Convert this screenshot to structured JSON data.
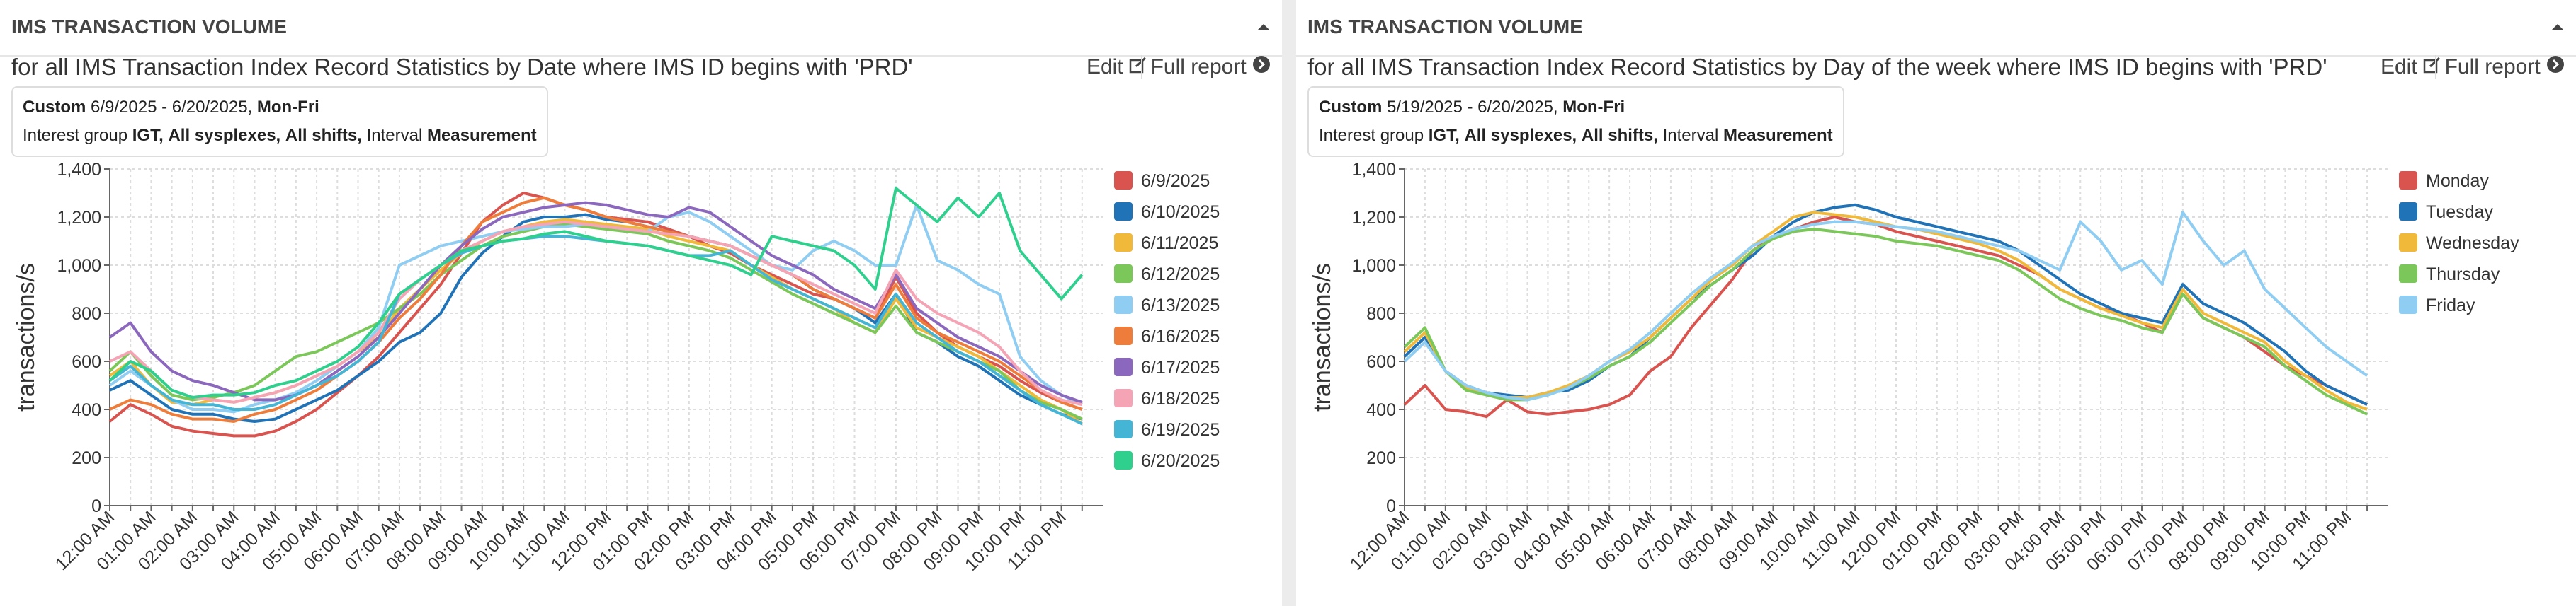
{
  "panels": [
    {
      "header": "IMS TRANSACTION VOLUME",
      "subtitle": "for all IMS Transaction Index Record Statistics by Date where IMS ID begins with 'PRD'",
      "edit": "Edit",
      "full_report": "Full report",
      "filter": {
        "label": "Custom",
        "range": "6/9/2025 - 6/20/2025,",
        "days": "Mon-Fri",
        "interest_label": "Interest group",
        "group": "IGT,",
        "sysplex": "All sysplexes,",
        "shifts": "All shifts,",
        "interval_label": "Interval",
        "interval": "Measurement"
      }
    },
    {
      "header": "IMS TRANSACTION VOLUME",
      "subtitle": "for all IMS Transaction Index Record Statistics by Day of the week where IMS ID begins with 'PRD'",
      "edit": "Edit",
      "full_report": "Full report",
      "filter": {
        "label": "Custom",
        "range": "5/19/2025 - 6/20/2025,",
        "days": "Mon-Fri",
        "interest_label": "Interest group",
        "group": "IGT,",
        "sysplex": "All sysplexes,",
        "shifts": "All shifts,",
        "interval_label": "Interval",
        "interval": "Measurement"
      }
    }
  ],
  "chart_data": [
    {
      "type": "line",
      "y_label": "transactions/s",
      "grid": true,
      "legend": "right",
      "ylim": [
        0,
        1400
      ],
      "yticks": [
        0,
        200,
        400,
        600,
        800,
        {
          "value": 1000,
          "label": "1,000"
        },
        {
          "value": 1200,
          "label": "1,200"
        },
        {
          "value": 1400,
          "label": "1,400"
        }
      ],
      "categories": [
        "12:00 AM",
        null,
        "01:00 AM",
        null,
        "02:00 AM",
        null,
        "03:00 AM",
        null,
        "04:00 AM",
        null,
        "05:00 AM",
        null,
        "06:00 AM",
        null,
        "07:00 AM",
        null,
        "08:00 AM",
        null,
        "09:00 AM",
        null,
        "10:00 AM",
        null,
        "11:00 AM",
        null,
        "12:00 PM",
        null,
        "01:00 PM",
        null,
        "02:00 PM",
        null,
        "03:00 PM",
        null,
        "04:00 PM",
        null,
        "05:00 PM",
        null,
        "06:00 PM",
        null,
        "07:00 PM",
        null,
        "08:00 PM",
        null,
        "09:00 PM",
        null,
        "10:00 PM",
        null,
        "11:00 PM",
        null
      ],
      "series": [
        {
          "name": "6/9/2025",
          "color": "#d9534f",
          "values": [
            350,
            420,
            380,
            330,
            310,
            300,
            290,
            290,
            310,
            350,
            400,
            470,
            540,
            620,
            720,
            820,
            920,
            1050,
            1180,
            1250,
            1300,
            1280,
            1250,
            1230,
            1200,
            1190,
            1180,
            1150,
            1120,
            1080,
            1050,
            1000,
            960,
            920,
            880,
            860,
            820,
            780,
            950,
            800,
            720,
            660,
            620,
            580,
            520,
            470,
            430,
            400
          ]
        },
        {
          "name": "6/10/2025",
          "color": "#2173b8",
          "values": [
            480,
            520,
            460,
            400,
            380,
            380,
            360,
            350,
            360,
            400,
            440,
            480,
            540,
            600,
            680,
            720,
            800,
            950,
            1050,
            1120,
            1180,
            1200,
            1200,
            1210,
            1190,
            1180,
            1160,
            1140,
            1120,
            1100,
            1080,
            1040,
            1000,
            960,
            900,
            860,
            820,
            760,
            880,
            720,
            680,
            620,
            580,
            520,
            460,
            420,
            380,
            360
          ]
        },
        {
          "name": "6/11/2025",
          "color": "#f0b93a",
          "values": [
            540,
            600,
            500,
            430,
            420,
            440,
            430,
            450,
            470,
            500,
            540,
            580,
            640,
            700,
            820,
            900,
            980,
            1050,
            1100,
            1140,
            1160,
            1180,
            1190,
            1180,
            1170,
            1160,
            1150,
            1120,
            1100,
            1080,
            1060,
            1000,
            950,
            900,
            860,
            820,
            760,
            720,
            860,
            740,
            700,
            660,
            620,
            560,
            500,
            440,
            400,
            340
          ]
        },
        {
          "name": "6/12/2025",
          "color": "#7cc75a",
          "values": [
            560,
            640,
            540,
            460,
            440,
            450,
            470,
            500,
            560,
            620,
            640,
            680,
            720,
            760,
            820,
            880,
            960,
            1020,
            1080,
            1120,
            1140,
            1160,
            1170,
            1160,
            1150,
            1140,
            1130,
            1100,
            1080,
            1060,
            1030,
            980,
            930,
            880,
            840,
            800,
            760,
            720,
            830,
            720,
            680,
            640,
            600,
            560,
            480,
            430,
            400,
            360
          ]
        },
        {
          "name": "6/13/2025",
          "color": "#8fcdf2",
          "values": [
            500,
            560,
            500,
            440,
            400,
            400,
            390,
            420,
            440,
            470,
            520,
            580,
            640,
            740,
            1000,
            1040,
            1080,
            1100,
            1120,
            1140,
            1150,
            1160,
            1160,
            1170,
            1160,
            1150,
            1140,
            1200,
            1220,
            1180,
            1120,
            1060,
            1000,
            980,
            1060,
            1100,
            1060,
            1000,
            1000,
            1250,
            1020,
            980,
            920,
            880,
            620,
            520,
            460,
            420
          ]
        },
        {
          "name": "6/16/2025",
          "color": "#ee7d3b",
          "values": [
            400,
            440,
            420,
            380,
            360,
            360,
            350,
            380,
            400,
            440,
            480,
            540,
            600,
            680,
            780,
            860,
            960,
            1080,
            1180,
            1220,
            1260,
            1280,
            1250,
            1230,
            1200,
            1180,
            1160,
            1140,
            1120,
            1100,
            1080,
            1040,
            1000,
            960,
            900,
            860,
            820,
            780,
            920,
            780,
            720,
            680,
            640,
            600,
            540,
            480,
            430,
            400
          ]
        },
        {
          "name": "6/17/2025",
          "color": "#8b68bd",
          "values": [
            700,
            760,
            640,
            560,
            520,
            500,
            470,
            440,
            440,
            460,
            500,
            560,
            620,
            700,
            800,
            900,
            1000,
            1080,
            1150,
            1200,
            1220,
            1240,
            1250,
            1260,
            1250,
            1230,
            1210,
            1200,
            1240,
            1220,
            1160,
            1100,
            1040,
            1000,
            960,
            900,
            860,
            820,
            960,
            820,
            760,
            700,
            660,
            620,
            560,
            500,
            460,
            430
          ]
        },
        {
          "name": "6/18/2025",
          "color": "#f5a4b5",
          "values": [
            600,
            640,
            560,
            480,
            450,
            440,
            430,
            450,
            470,
            500,
            540,
            580,
            640,
            720,
            860,
            940,
            1000,
            1060,
            1100,
            1140,
            1160,
            1170,
            1180,
            1170,
            1160,
            1150,
            1140,
            1130,
            1120,
            1100,
            1080,
            1040,
            1000,
            960,
            920,
            880,
            840,
            800,
            980,
            860,
            800,
            760,
            720,
            660,
            560,
            480,
            440,
            420
          ]
        },
        {
          "name": "6/19/2025",
          "color": "#45b5d6",
          "values": [
            520,
            580,
            500,
            440,
            420,
            420,
            400,
            400,
            420,
            460,
            500,
            540,
            600,
            680,
            880,
            940,
            1000,
            1050,
            1080,
            1100,
            1110,
            1120,
            1120,
            1110,
            1100,
            1090,
            1080,
            1060,
            1040,
            1040,
            1060,
            1000,
            940,
            900,
            860,
            820,
            780,
            740,
            880,
            760,
            700,
            640,
            600,
            540,
            480,
            420,
            380,
            340
          ]
        },
        {
          "name": "6/20/2025",
          "color": "#2fd08e",
          "values": [
            520,
            600,
            560,
            480,
            450,
            460,
            460,
            470,
            500,
            520,
            560,
            600,
            660,
            760,
            880,
            940,
            1000,
            1060,
            1080,
            1100,
            1110,
            1130,
            1140,
            1120,
            1100,
            1090,
            1080,
            1060,
            1040,
            1020,
            1000,
            960,
            1120,
            1100,
            1080,
            1060,
            1000,
            900,
            1320,
            1250,
            1180,
            1280,
            1200,
            1300,
            1060,
            960,
            860,
            960
          ]
        }
      ]
    },
    {
      "type": "line",
      "y_label": "transactions/s",
      "grid": true,
      "legend": "right",
      "ylim": [
        0,
        1400
      ],
      "yticks": [
        0,
        200,
        400,
        600,
        800,
        {
          "value": 1000,
          "label": "1,000"
        },
        {
          "value": 1200,
          "label": "1,200"
        },
        {
          "value": 1400,
          "label": "1,400"
        }
      ],
      "categories": [
        "12:00 AM",
        null,
        "01:00 AM",
        null,
        "02:00 AM",
        null,
        "03:00 AM",
        null,
        "04:00 AM",
        null,
        "05:00 AM",
        null,
        "06:00 AM",
        null,
        "07:00 AM",
        null,
        "08:00 AM",
        null,
        "09:00 AM",
        null,
        "10:00 AM",
        null,
        "11:00 AM",
        null,
        "12:00 PM",
        null,
        "01:00 PM",
        null,
        "02:00 PM",
        null,
        "03:00 PM",
        null,
        "04:00 PM",
        null,
        "05:00 PM",
        null,
        "06:00 PM",
        null,
        "07:00 PM",
        null,
        "08:00 PM",
        null,
        "09:00 PM",
        null,
        "10:00 PM",
        null,
        "11:00 PM",
        null
      ],
      "series": [
        {
          "name": "Monday",
          "color": "#d9534f",
          "values": [
            420,
            500,
            400,
            390,
            370,
            440,
            390,
            380,
            390,
            400,
            420,
            460,
            560,
            620,
            740,
            840,
            940,
            1060,
            1120,
            1150,
            1180,
            1200,
            1180,
            1170,
            1140,
            1120,
            1100,
            1080,
            1060,
            1040,
            1000,
            960,
            900,
            860,
            820,
            800,
            760,
            720,
            880,
            780,
            740,
            700,
            640,
            580,
            540,
            500,
            460,
            420
          ]
        },
        {
          "name": "Tuesday",
          "color": "#2173b8",
          "values": [
            620,
            700,
            560,
            500,
            470,
            460,
            450,
            470,
            480,
            520,
            580,
            620,
            700,
            780,
            860,
            920,
            980,
            1040,
            1120,
            1180,
            1220,
            1240,
            1250,
            1230,
            1200,
            1180,
            1160,
            1140,
            1120,
            1100,
            1060,
            1000,
            940,
            880,
            840,
            800,
            780,
            760,
            920,
            840,
            800,
            760,
            700,
            640,
            560,
            500,
            460,
            420
          ]
        },
        {
          "name": "Wednesday",
          "color": "#f0b93a",
          "values": [
            640,
            720,
            560,
            490,
            470,
            450,
            450,
            470,
            500,
            540,
            600,
            640,
            700,
            780,
            860,
            940,
            1000,
            1080,
            1140,
            1200,
            1220,
            1210,
            1200,
            1180,
            1160,
            1150,
            1130,
            1110,
            1090,
            1060,
            1020,
            960,
            900,
            860,
            820,
            790,
            760,
            740,
            900,
            800,
            760,
            720,
            680,
            600,
            540,
            480,
            430,
            400
          ]
        },
        {
          "name": "Thursday",
          "color": "#7cc75a",
          "values": [
            660,
            740,
            560,
            480,
            460,
            440,
            440,
            460,
            490,
            530,
            580,
            620,
            680,
            760,
            840,
            920,
            980,
            1060,
            1110,
            1140,
            1150,
            1140,
            1130,
            1120,
            1100,
            1090,
            1080,
            1060,
            1040,
            1020,
            980,
            920,
            860,
            820,
            790,
            770,
            740,
            720,
            880,
            780,
            740,
            700,
            660,
            580,
            520,
            460,
            420,
            380
          ]
        },
        {
          "name": "Friday",
          "color": "#8fcdf2",
          "values": [
            600,
            680,
            560,
            500,
            470,
            450,
            440,
            460,
            490,
            540,
            600,
            650,
            720,
            800,
            880,
            950,
            1010,
            1080,
            1120,
            1150,
            1170,
            1180,
            1180,
            1170,
            1160,
            1150,
            1140,
            1120,
            1100,
            1080,
            1060,
            1020,
            980,
            1180,
            1100,
            980,
            1020,
            920,
            1220,
            1100,
            1000,
            1060,
            900,
            820,
            740,
            660,
            600,
            540
          ]
        }
      ]
    }
  ]
}
